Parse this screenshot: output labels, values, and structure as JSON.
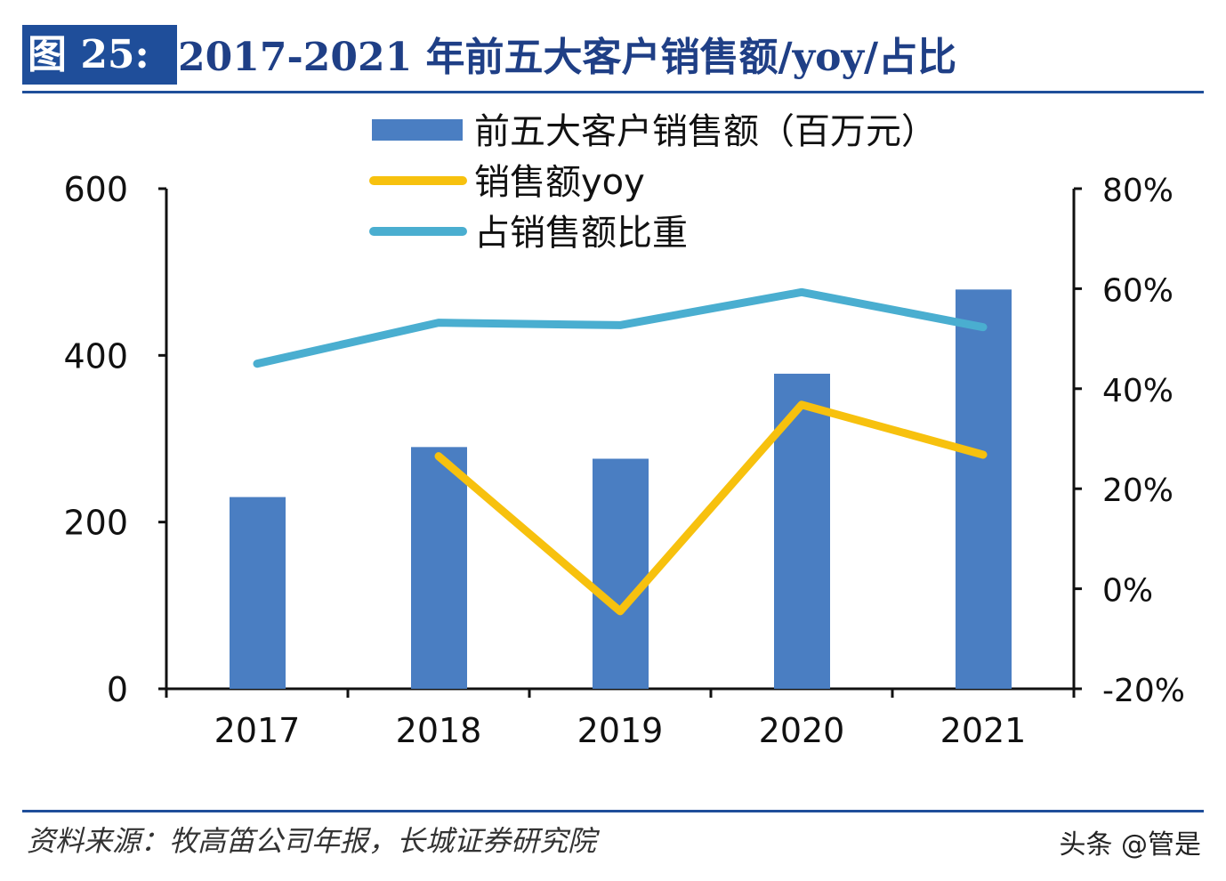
{
  "header": {
    "figure_label": "图 25:",
    "title": "2017-2021 年前五大客户销售额/yoy/占比"
  },
  "footer": {
    "source": "资料来源：牧高笛公司年报，长城证券研究院",
    "watermark": "头条 @管是"
  },
  "chart_data": {
    "type": "bar+line",
    "categories": [
      "2017",
      "2018",
      "2019",
      "2020",
      "2021"
    ],
    "series": [
      {
        "name": "前五大客户销售额（百万元）",
        "type": "bar",
        "axis": "left",
        "color": "#4a7ec2",
        "values": [
          230,
          290,
          276,
          378,
          479
        ]
      },
      {
        "name": "销售额yoy",
        "type": "line",
        "axis": "right",
        "color": "#f7c10e",
        "values": [
          null,
          26.5,
          -4.5,
          36.8,
          26.8
        ]
      },
      {
        "name": "占销售额比重",
        "type": "line",
        "axis": "right",
        "color": "#4aaed0",
        "values": [
          45.0,
          53.2,
          52.7,
          59.3,
          52.3
        ]
      }
    ],
    "left_axis": {
      "ylim": [
        0,
        600
      ],
      "ticks": [
        "0",
        "200",
        "400",
        "600"
      ]
    },
    "right_axis": {
      "ylim": [
        -20,
        80
      ],
      "unit": "%",
      "ticks": [
        "-20%",
        "0%",
        "20%",
        "40%",
        "60%",
        "80%"
      ]
    },
    "legend_placement": "top-center",
    "grid": false
  }
}
